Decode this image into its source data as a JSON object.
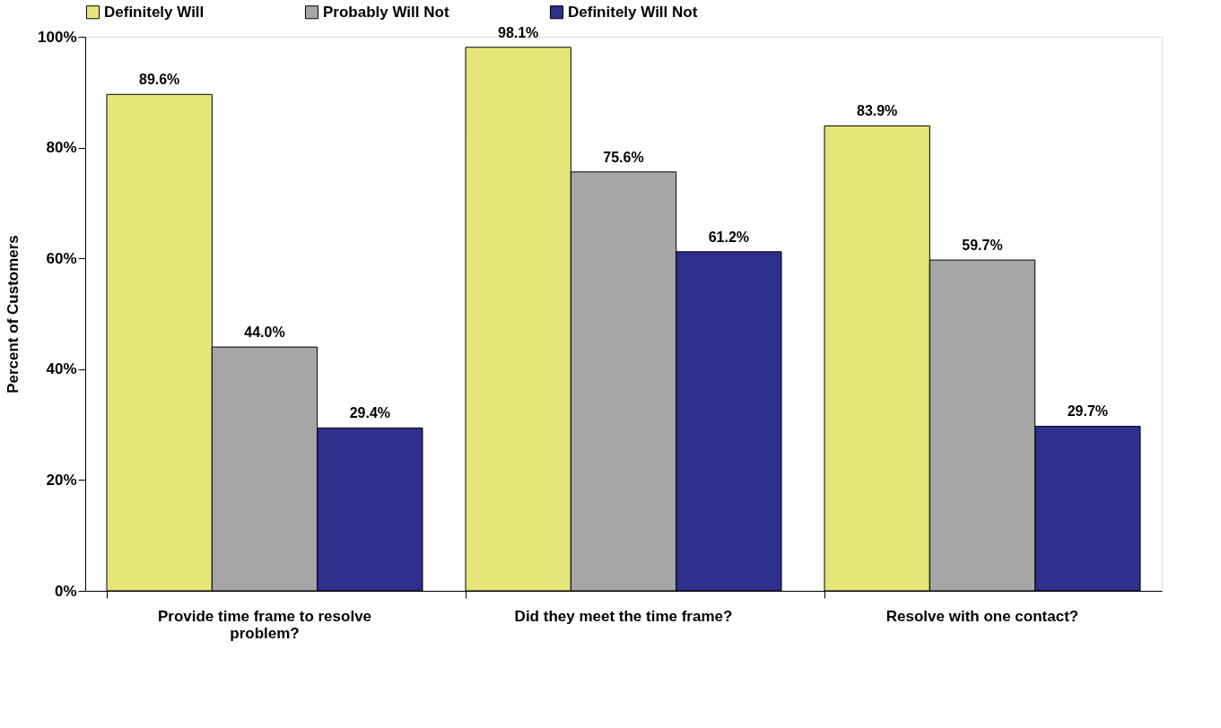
{
  "chart_data": {
    "type": "bar",
    "ylabel": "Percent of Customers",
    "categories": [
      "Provide time frame to resolve problem?",
      "Did they meet the time frame?",
      "Resolve with one contact?"
    ],
    "series": [
      {
        "name": "Definitely Will",
        "color": "#e6e67a",
        "values": [
          89.6,
          98.1,
          83.9
        ],
        "value_labels": [
          "89.6%",
          "98.1%",
          "83.9%"
        ]
      },
      {
        "name": "Probably Will Not",
        "color": "#a6a6a6",
        "values": [
          44.0,
          75.6,
          59.7
        ],
        "value_labels": [
          "44.0%",
          "75.6%",
          "59.7%"
        ]
      },
      {
        "name": "Definitely Will Not",
        "color": "#2e2e8c",
        "values": [
          29.4,
          61.2,
          29.7
        ],
        "value_labels": [
          "29.4%",
          "61.2%",
          "29.7%"
        ]
      }
    ],
    "ylim": [
      0,
      100
    ],
    "yticks": [
      {
        "value": 0,
        "label": "0%"
      },
      {
        "value": 20,
        "label": "20%"
      },
      {
        "value": 40,
        "label": "40%"
      },
      {
        "value": 60,
        "label": "60%"
      },
      {
        "value": 80,
        "label": "80%"
      },
      {
        "value": 100,
        "label": "100%"
      }
    ],
    "grid": false,
    "legend": "top"
  }
}
